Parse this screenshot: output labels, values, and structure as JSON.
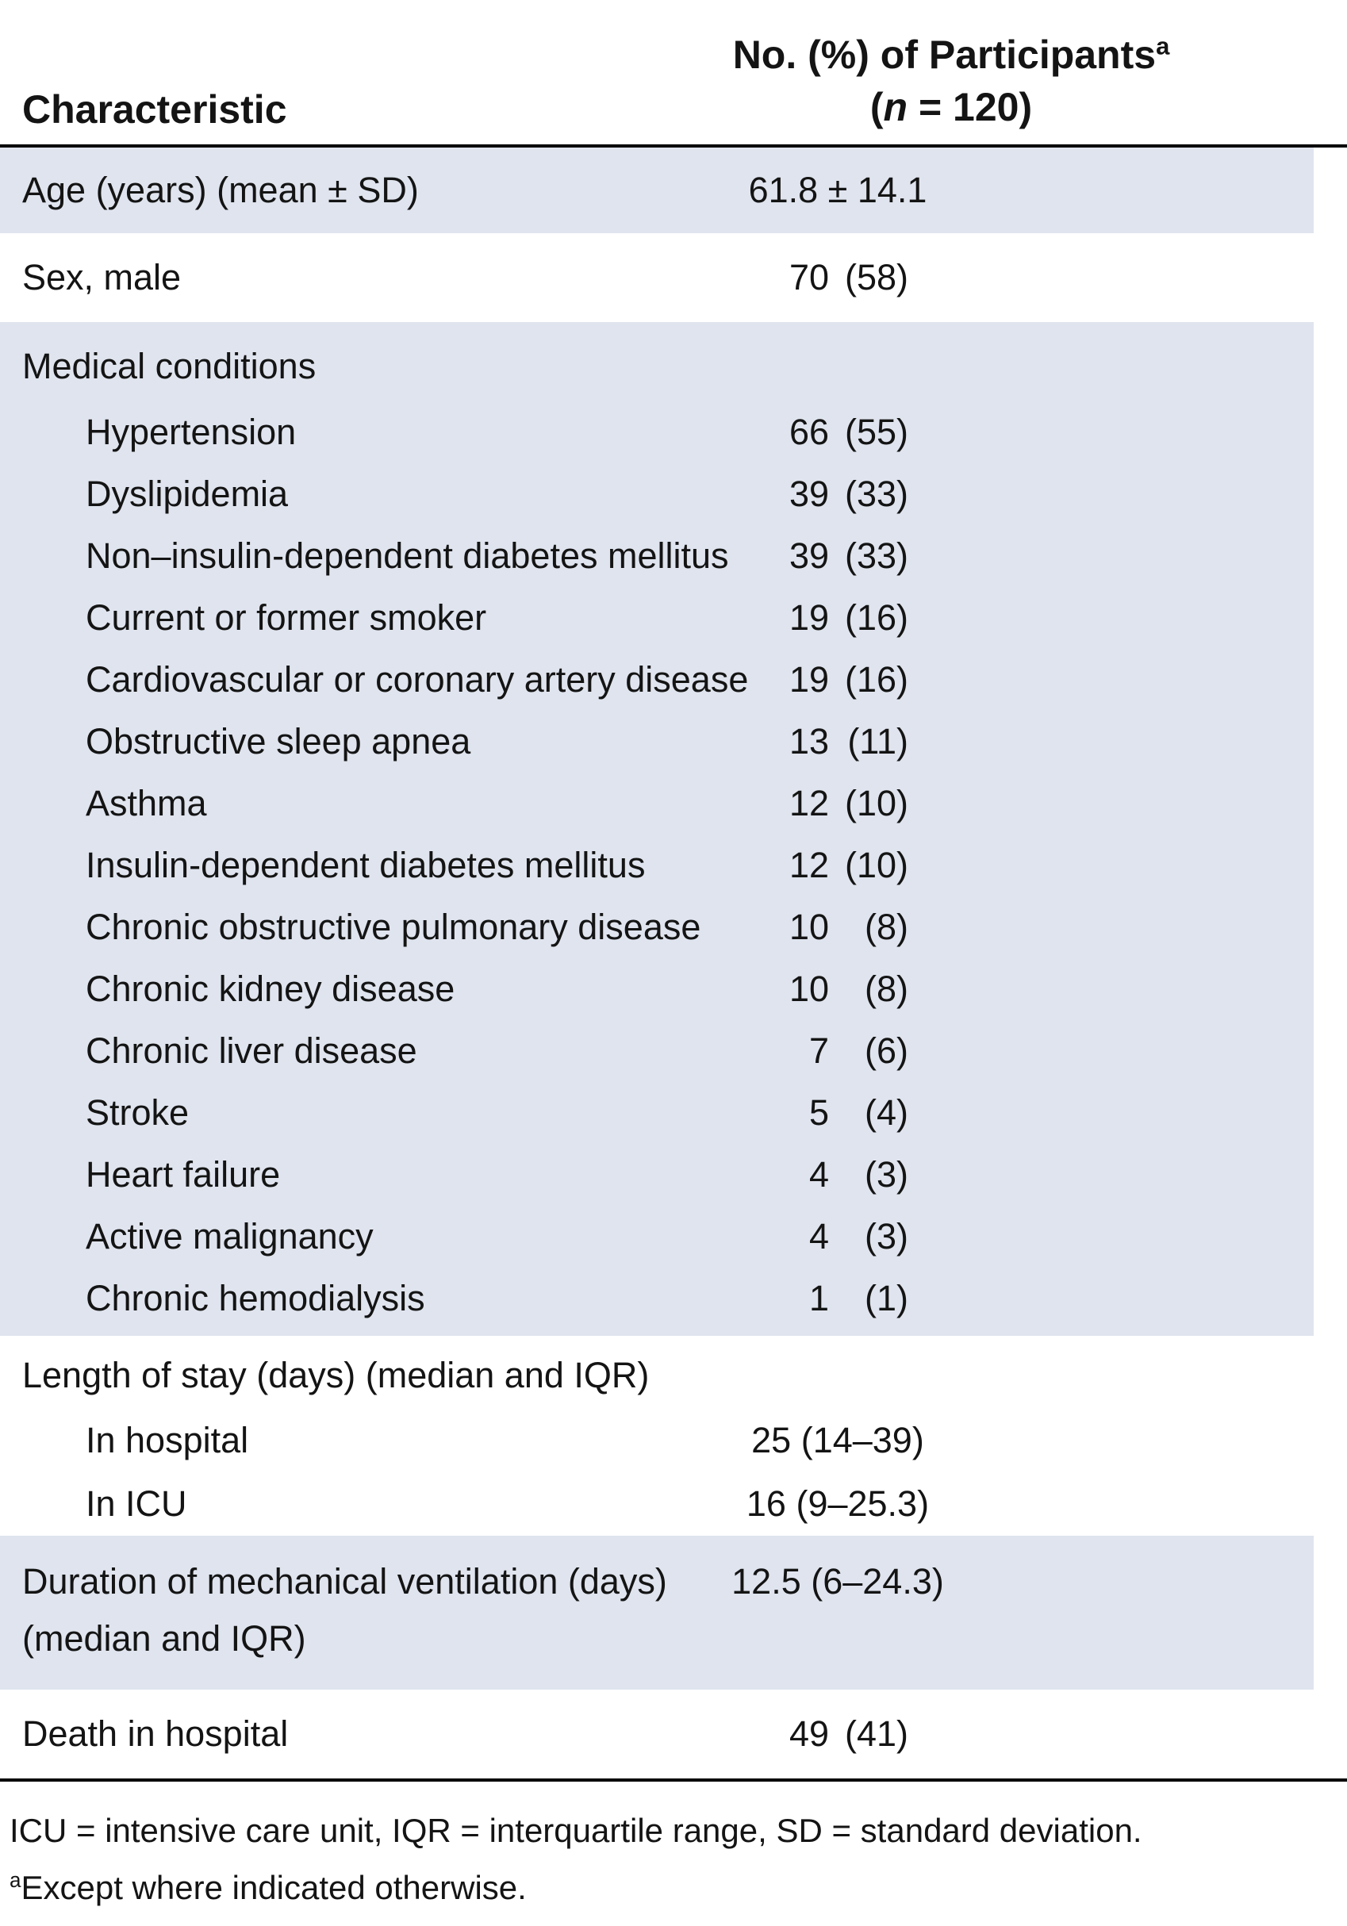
{
  "header": {
    "col1": "Characteristic",
    "col2_line1": "No. (%) of Participants",
    "col2_sup": "a",
    "col2_open": "(",
    "col2_n": "n",
    "col2_rest": " = 120)"
  },
  "rows": {
    "age": {
      "label": "Age (years) (mean ± SD)",
      "value": "61.8 ± 14.1"
    },
    "sex": {
      "label": "Sex, male",
      "num": "70",
      "pct": "(58)"
    },
    "medical": {
      "header": "Medical conditions",
      "items": [
        {
          "label": "Hypertension",
          "num": "66",
          "pct": "(55)"
        },
        {
          "label": "Dyslipidemia",
          "num": "39",
          "pct": "(33)"
        },
        {
          "label": "Non–insulin-dependent diabetes mellitus",
          "num": "39",
          "pct": "(33)"
        },
        {
          "label": "Current or former smoker",
          "num": "19",
          "pct": "(16)"
        },
        {
          "label": "Cardiovascular or coronary artery disease",
          "num": "19",
          "pct": "(16)"
        },
        {
          "label": "Obstructive sleep apnea",
          "num": "13",
          "pct": "(11)"
        },
        {
          "label": "Asthma",
          "num": "12",
          "pct": "(10)"
        },
        {
          "label": "Insulin-dependent diabetes mellitus",
          "num": "12",
          "pct": "(10)"
        },
        {
          "label": "Chronic obstructive pulmonary disease",
          "num": "10",
          "pct": "(8)"
        },
        {
          "label": "Chronic kidney disease",
          "num": "10",
          "pct": "(8)"
        },
        {
          "label": "Chronic liver disease",
          "num": "7",
          "pct": "(6)"
        },
        {
          "label": "Stroke",
          "num": "5",
          "pct": "(4)"
        },
        {
          "label": "Heart failure",
          "num": "4",
          "pct": "(3)"
        },
        {
          "label": "Active malignancy",
          "num": "4",
          "pct": "(3)"
        },
        {
          "label": "Chronic hemodialysis",
          "num": "1",
          "pct": "(1)"
        }
      ]
    },
    "los": {
      "header": "Length of stay (days) (median and IQR)",
      "items": [
        {
          "label": "In hospital",
          "value": "25 (14–39)"
        },
        {
          "label": "In ICU",
          "value": "16 (9–25.3)"
        }
      ]
    },
    "duration": {
      "label_line1": "Duration of mechanical ventilation (days)",
      "label_line2": "(median and IQR)",
      "value": "12.5 (6–24.3)"
    },
    "death": {
      "label": "Death in hospital",
      "num": "49",
      "pct": "(41)"
    }
  },
  "footnotes": {
    "abbrev": "ICU = intensive care unit, IQR = interquartile range, SD = standard deviation.",
    "sup": "a",
    "except": "Except where indicated otherwise."
  },
  "colors": {
    "row_shade": "#dfe4ee",
    "rule": "#000000",
    "text": "#141414"
  }
}
